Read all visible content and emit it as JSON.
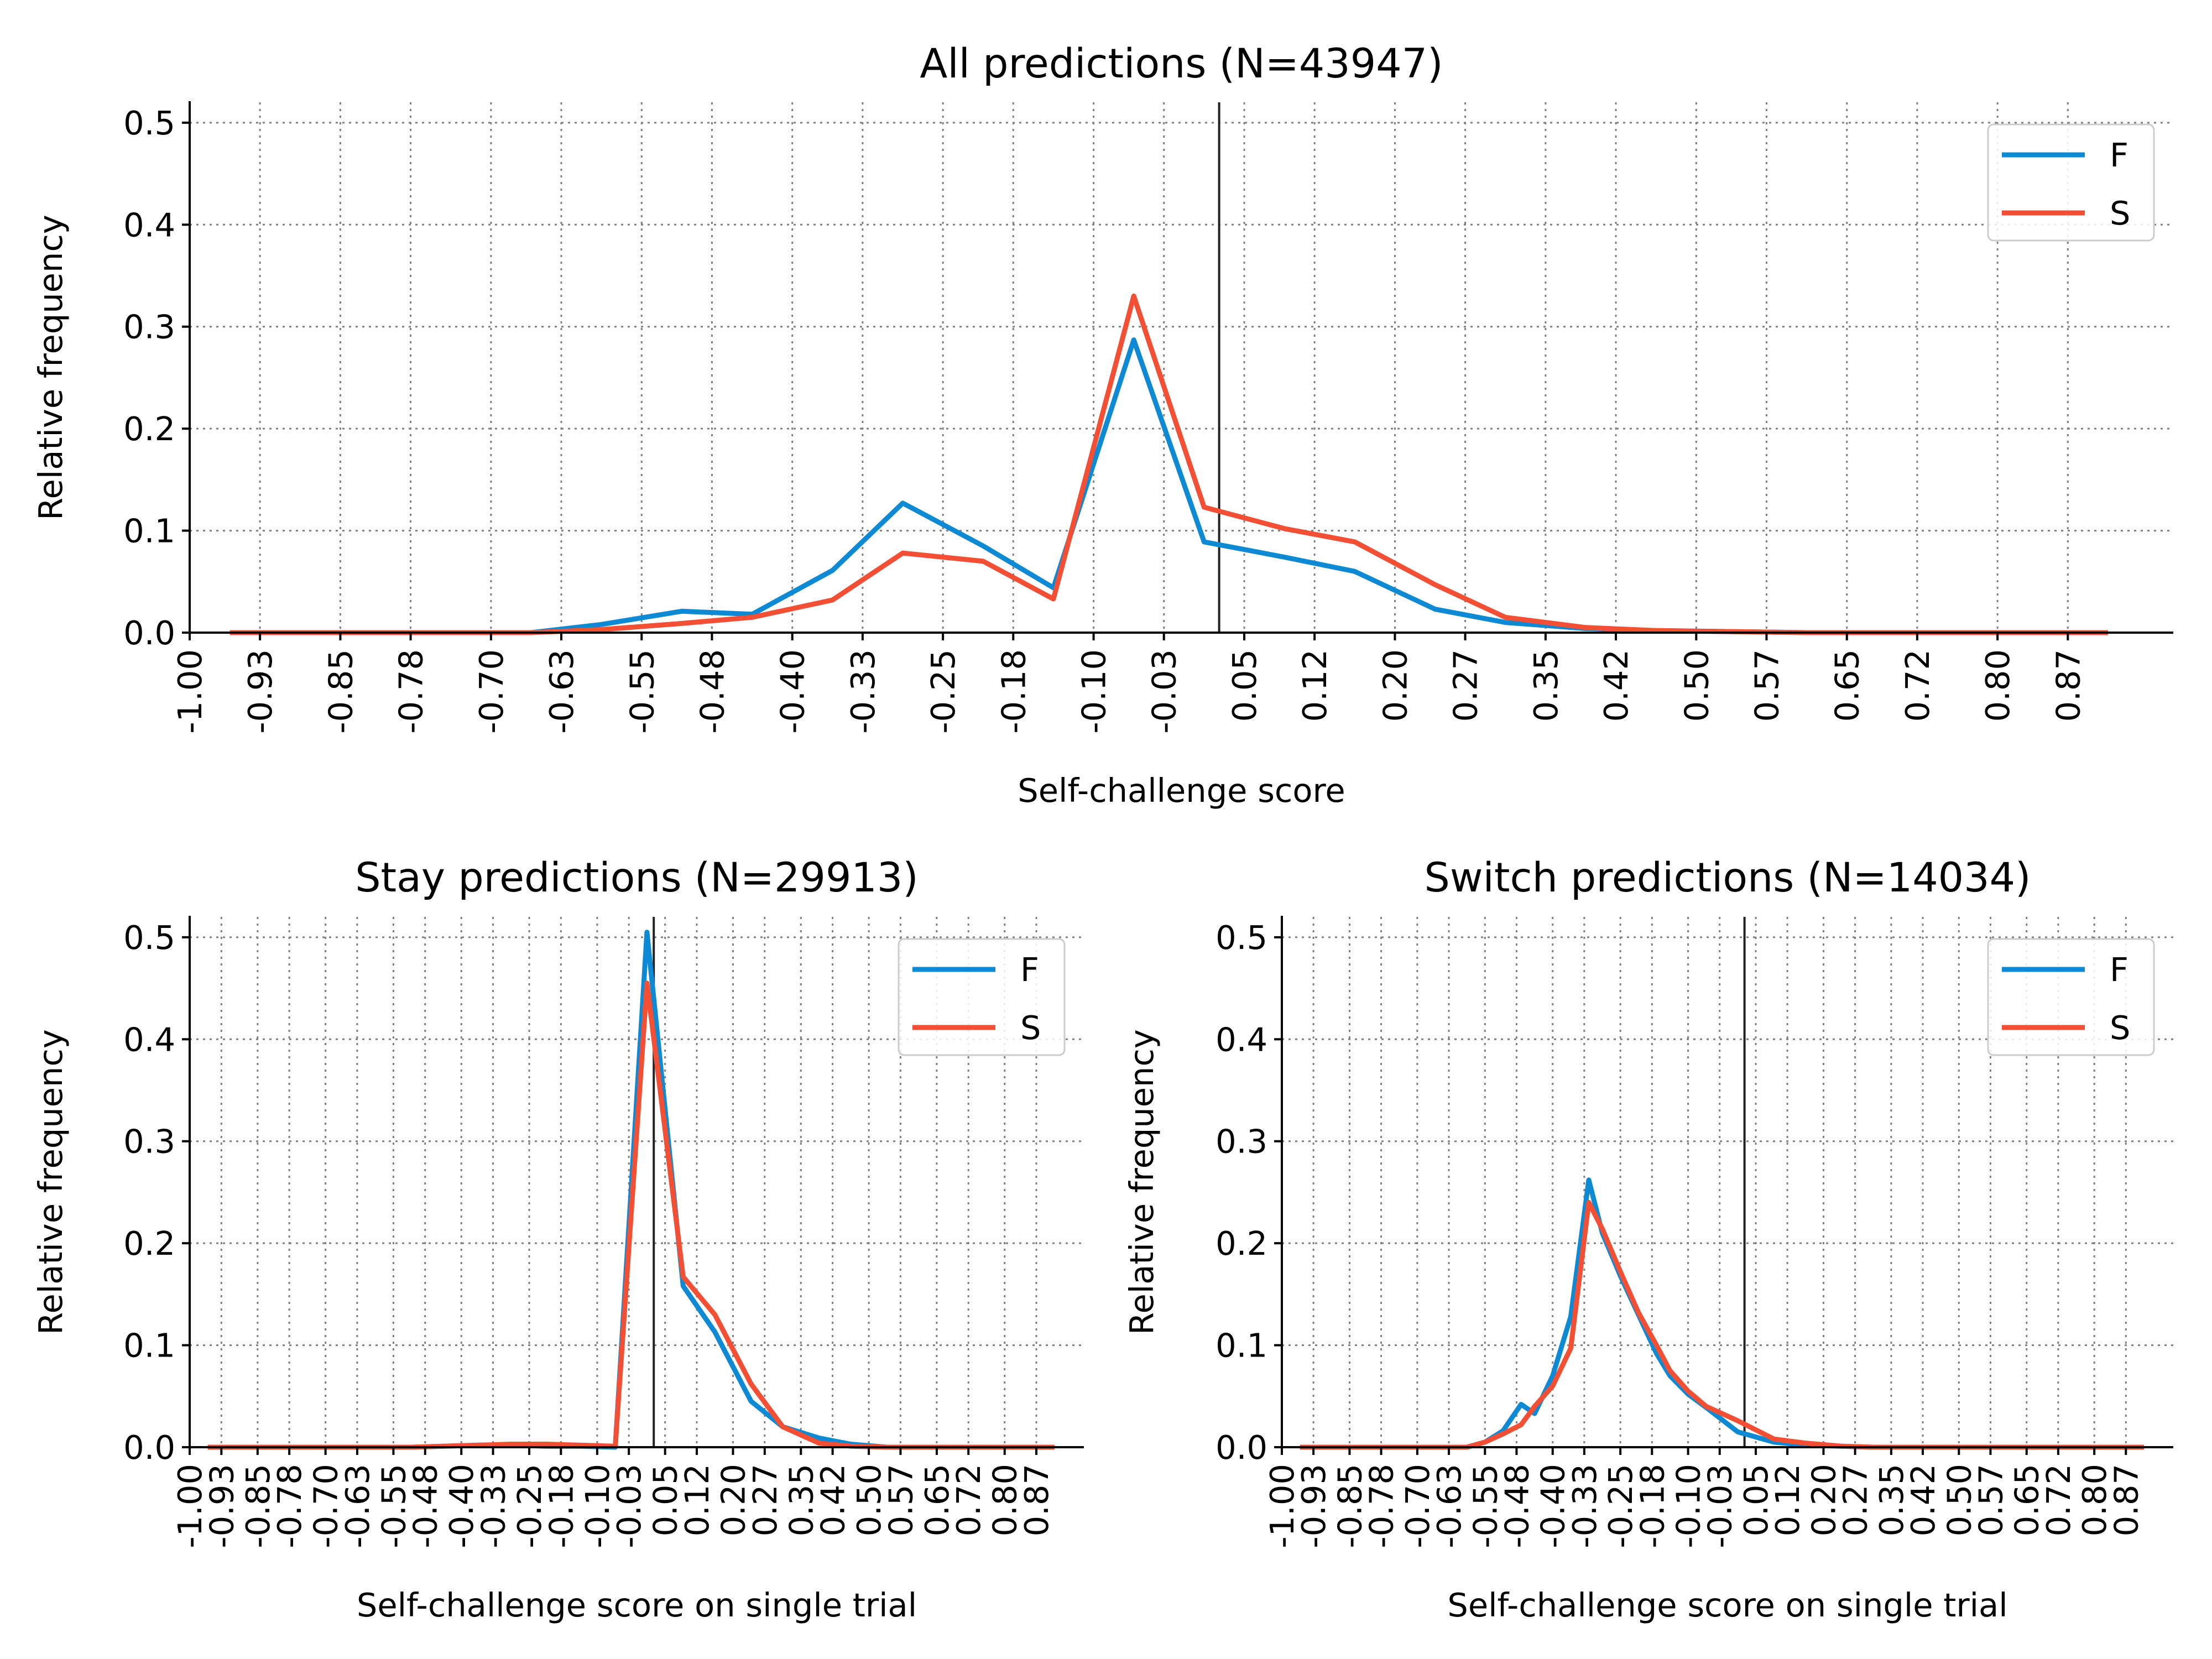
{
  "chart_data": [
    {
      "type": "line",
      "title": "All predictions (N=43947)",
      "xlabel": "Self-challenge score",
      "ylabel": "Relative frequency",
      "xlim": [
        -1.0,
        0.975
      ],
      "ylim": [
        0,
        0.52
      ],
      "xticks": [
        "-1.00",
        "-0.93",
        "-0.85",
        "-0.78",
        "-0.70",
        "-0.63",
        "-0.55",
        "-0.48",
        "-0.40",
        "-0.33",
        "-0.25",
        "-0.18",
        "-0.10",
        "-0.03",
        "0.05",
        "0.12",
        "0.20",
        "0.27",
        "0.35",
        "0.42",
        "0.50",
        "0.57",
        "0.65",
        "0.72",
        "0.80",
        "0.87"
      ],
      "yticks": [
        "0.0",
        "0.1",
        "0.2",
        "0.3",
        "0.4",
        "0.5"
      ],
      "grid": true,
      "legend": "upper right",
      "vline": 0.025,
      "x": [
        -0.96,
        -0.89,
        -0.81,
        -0.74,
        -0.66,
        -0.59,
        -0.51,
        -0.44,
        -0.36,
        -0.29,
        -0.21,
        -0.14,
        -0.06,
        0.01,
        0.09,
        0.16,
        0.24,
        0.31,
        0.39,
        0.46,
        0.54,
        0.61,
        0.69,
        0.76,
        0.84,
        0.91
      ],
      "series": [
        {
          "name": "F",
          "color": "#0e8ad4",
          "values": [
            0.0,
            0.0,
            0.0,
            0.0,
            0.0,
            0.008,
            0.021,
            0.018,
            0.061,
            0.127,
            0.085,
            0.044,
            0.287,
            0.089,
            0.074,
            0.06,
            0.023,
            0.01,
            0.004,
            0.002,
            0.001,
            0.0,
            0.0,
            0.0,
            0.0,
            0.0
          ]
        },
        {
          "name": "S",
          "color": "#f24f35",
          "values": [
            0.0,
            0.0,
            0.0,
            0.0,
            0.0,
            0.003,
            0.009,
            0.015,
            0.032,
            0.078,
            0.07,
            0.033,
            0.33,
            0.123,
            0.102,
            0.089,
            0.047,
            0.015,
            0.005,
            0.002,
            0.001,
            0.0,
            0.0,
            0.0,
            0.0,
            0.0
          ]
        }
      ]
    },
    {
      "type": "line",
      "title": "Stay predictions (N=29913)",
      "xlabel": "Self-challenge score on single trial",
      "ylabel": "Relative frequency",
      "xlim": [
        -1.0,
        0.975
      ],
      "ylim": [
        0,
        0.52
      ],
      "xticks": [
        "-1.00",
        "-0.93",
        "-0.85",
        "-0.78",
        "-0.70",
        "-0.63",
        "-0.55",
        "-0.48",
        "-0.40",
        "-0.33",
        "-0.25",
        "-0.18",
        "-0.10",
        "-0.03",
        "0.05",
        "0.12",
        "0.20",
        "0.27",
        "0.35",
        "0.42",
        "0.50",
        "0.57",
        "0.65",
        "0.72",
        "0.80",
        "0.87"
      ],
      "yticks": [
        "0.0",
        "0.1",
        "0.2",
        "0.3",
        "0.4",
        "0.5"
      ],
      "grid": true,
      "legend": "upper right",
      "vline": 0.025,
      "x": [
        -0.96,
        -0.89,
        -0.81,
        -0.74,
        -0.66,
        -0.59,
        -0.51,
        -0.44,
        -0.36,
        -0.29,
        -0.21,
        -0.14,
        -0.06,
        0.01,
        0.09,
        0.16,
        0.24,
        0.31,
        0.39,
        0.46,
        0.54,
        0.61,
        0.69,
        0.76,
        0.84,
        0.91
      ],
      "series": [
        {
          "name": "F",
          "color": "#0e8ad4",
          "values": [
            0.0,
            0.0,
            0.0,
            0.0,
            0.0,
            0.0,
            0.0,
            0.001,
            0.002,
            0.002,
            0.001,
            0.001,
            0.0,
            0.505,
            0.158,
            0.113,
            0.045,
            0.02,
            0.009,
            0.003,
            0.0,
            0.0,
            0.0,
            0.0,
            0.0,
            0.0
          ]
        },
        {
          "name": "S",
          "color": "#f24f35",
          "values": [
            0.0,
            0.0,
            0.0,
            0.0,
            0.0,
            0.0,
            0.0,
            0.001,
            0.002,
            0.003,
            0.003,
            0.002,
            0.001,
            0.455,
            0.167,
            0.13,
            0.062,
            0.02,
            0.004,
            0.001,
            0.0,
            0.0,
            0.0,
            0.0,
            0.0,
            0.0
          ]
        }
      ]
    },
    {
      "type": "line",
      "title": "Switch predictions (N=14034)",
      "xlabel": "Self-challenge score on single trial",
      "ylabel": "Relative frequency",
      "xlim": [
        -1.0,
        0.975
      ],
      "ylim": [
        0,
        0.52
      ],
      "xticks": [
        "-1.00",
        "-0.93",
        "-0.85",
        "-0.78",
        "-0.70",
        "-0.63",
        "-0.55",
        "-0.48",
        "-0.40",
        "-0.33",
        "-0.25",
        "-0.18",
        "-0.10",
        "-0.03",
        "0.05",
        "0.12",
        "0.20",
        "0.27",
        "0.35",
        "0.42",
        "0.50",
        "0.57",
        "0.65",
        "0.72",
        "0.80",
        "0.87"
      ],
      "yticks": [
        "0.0",
        "0.1",
        "0.2",
        "0.3",
        "0.4",
        "0.5"
      ],
      "grid": true,
      "legend": "upper right",
      "vline": 0.025,
      "x": [
        -0.96,
        -0.89,
        -0.81,
        -0.74,
        -0.66,
        -0.59,
        -0.55,
        -0.51,
        -0.47,
        -0.44,
        -0.4,
        -0.36,
        -0.32,
        -0.29,
        -0.25,
        -0.21,
        -0.17,
        -0.14,
        -0.1,
        -0.06,
        0.01,
        0.09,
        0.16,
        0.24,
        0.31,
        0.39,
        0.46,
        0.54,
        0.61,
        0.69,
        0.76,
        0.84,
        0.91
      ],
      "series": [
        {
          "name": "F",
          "color": "#0e8ad4",
          "values": [
            0.0,
            0.0,
            0.0,
            0.0,
            0.0,
            0.0,
            0.005,
            0.016,
            0.042,
            0.033,
            0.07,
            0.128,
            0.262,
            0.21,
            0.168,
            0.13,
            0.092,
            0.07,
            0.052,
            0.039,
            0.015,
            0.005,
            0.002,
            0.001,
            0.0,
            0.0,
            0.0,
            0.0,
            0.0,
            0.0,
            0.0,
            0.0,
            0.0
          ]
        },
        {
          "name": "S",
          "color": "#f24f35",
          "values": [
            0.0,
            0.0,
            0.0,
            0.0,
            0.0,
            0.0,
            0.005,
            0.013,
            0.022,
            0.04,
            0.06,
            0.097,
            0.24,
            0.214,
            0.172,
            0.132,
            0.1,
            0.075,
            0.055,
            0.04,
            0.026,
            0.008,
            0.004,
            0.001,
            0.0,
            0.0,
            0.0,
            0.0,
            0.0,
            0.0,
            0.0,
            0.0,
            0.0
          ]
        }
      ]
    }
  ]
}
